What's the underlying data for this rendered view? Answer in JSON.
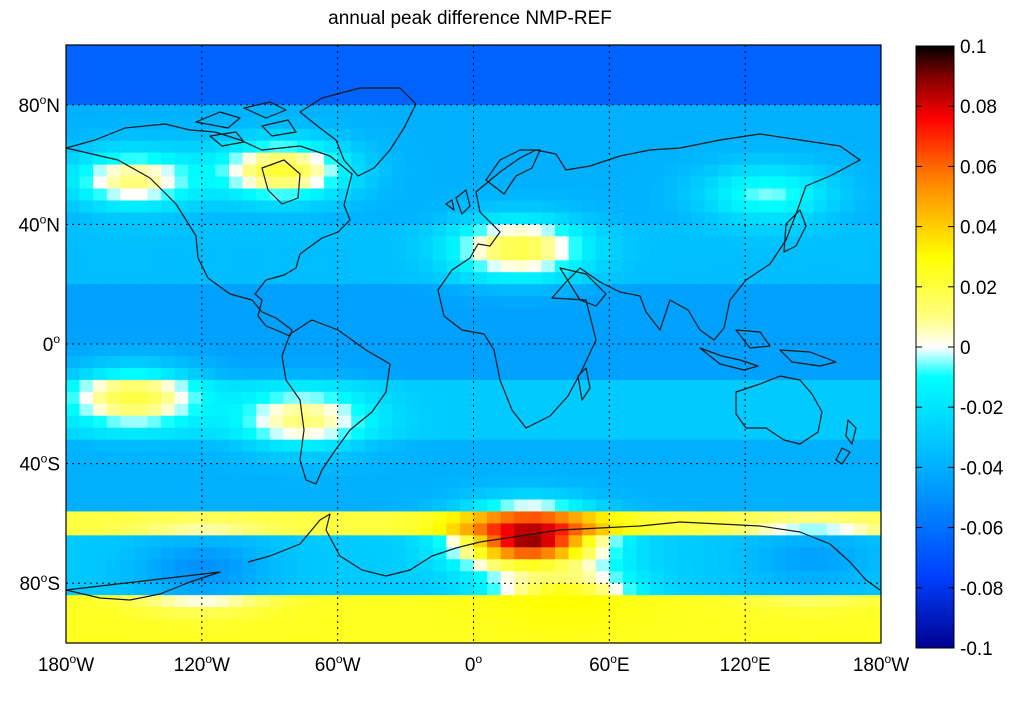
{
  "title": "annual peak difference NMP-REF",
  "map": {
    "projection": "equirectangular",
    "lon_range": [
      -180,
      180
    ],
    "lat_range": [
      -100,
      100
    ],
    "grid": true,
    "x_ticks": [
      {
        "lon": -180,
        "num": "180",
        "hemi": "W"
      },
      {
        "lon": -120,
        "num": "120",
        "hemi": "W"
      },
      {
        "lon": -60,
        "num": "60",
        "hemi": "W"
      },
      {
        "lon": 0,
        "num": "0",
        "hemi": ""
      },
      {
        "lon": 60,
        "num": "60",
        "hemi": "E"
      },
      {
        "lon": 120,
        "num": "120",
        "hemi": "E"
      },
      {
        "lon": 180,
        "num": "180",
        "hemi": "W"
      }
    ],
    "y_ticks": [
      {
        "lat": 80,
        "num": "80",
        "hemi": "N"
      },
      {
        "lat": 40,
        "num": "40",
        "hemi": "N"
      },
      {
        "lat": 0,
        "num": "0",
        "hemi": ""
      },
      {
        "lat": -40,
        "num": "40",
        "hemi": "S"
      },
      {
        "lat": -80,
        "num": "80",
        "hemi": "S"
      }
    ],
    "degree_symbol": "o"
  },
  "colorbar": {
    "colormap": "jet",
    "range": [
      -0.1,
      0.1
    ],
    "ticks": [
      "0.1",
      "0.08",
      "0.06",
      "0.04",
      "0.02",
      "0",
      "-0.02",
      "-0.04",
      "-0.06",
      "-0.08",
      "-0.1"
    ],
    "colors": [
      "#000000",
      "#800000",
      "#ff0000",
      "#ff8000",
      "#ffff00",
      "#ffffff",
      "#00ffff",
      "#00a0ff",
      "#0040ff",
      "#0000a0"
    ]
  },
  "field_bands": [
    {
      "lat": [
        80,
        100
      ],
      "value": -0.065
    },
    {
      "lat": [
        40,
        80
      ],
      "value": -0.04
    },
    {
      "lat": [
        20,
        40
      ],
      "value": -0.035
    },
    {
      "lat": [
        -10,
        20
      ],
      "value": -0.045
    },
    {
      "lat": [
        -30,
        -10
      ],
      "value": -0.03
    },
    {
      "lat": [
        -55,
        -30
      ],
      "value": -0.04
    },
    {
      "lat": [
        -65,
        -55
      ],
      "value": 0.02
    },
    {
      "lat": [
        -85,
        -65
      ],
      "value": -0.03
    },
    {
      "lat": [
        -100,
        -85
      ],
      "value": 0.025
    }
  ],
  "field_features": [
    {
      "name": "canada-greenland-positive",
      "lon": -85,
      "lat": 58,
      "value": 0.022
    },
    {
      "name": "alaska-positive",
      "lon": -150,
      "lat": 55,
      "value": 0.012
    },
    {
      "name": "subtropical-north-positive",
      "lon": 20,
      "lat": 32,
      "value": 0.02
    },
    {
      "name": "subtropical-south-positive",
      "lon": -150,
      "lat": -18,
      "value": 0.02
    },
    {
      "name": "south-america-positive",
      "lon": -75,
      "lat": -25,
      "value": 0.012
    },
    {
      "name": "southern-ocean-peak",
      "lon": 25,
      "lat": -65,
      "value": 0.09
    },
    {
      "name": "antarctic-positive",
      "lon": 40,
      "lat": -85,
      "value": 0.03
    },
    {
      "name": "east-asia-near-zero",
      "lon": 130,
      "lat": 50,
      "value": -0.005
    },
    {
      "name": "west-antarctic-negative",
      "lon": -120,
      "lat": -75,
      "value": -0.05
    },
    {
      "name": "ross-sea-negative",
      "lon": 150,
      "lat": -72,
      "value": -0.045
    }
  ]
}
